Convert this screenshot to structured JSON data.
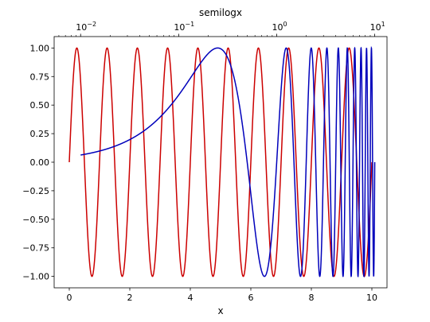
{
  "chart_data": {
    "type": "line",
    "title": "",
    "xlabel": "x",
    "ylabel": "",
    "top_axis_label": "semilogx",
    "bottom_axis": {
      "scale": "linear",
      "xlim": [
        -0.5,
        10.5
      ],
      "ticks": [
        0,
        2,
        4,
        6,
        8,
        10
      ],
      "tick_labels": [
        "0",
        "2",
        "4",
        "6",
        "8",
        "10"
      ]
    },
    "top_axis": {
      "scale": "log",
      "xlim_log10": [
        -2.27,
        1.125
      ],
      "major_ticks": [
        -2,
        -1,
        0,
        1
      ],
      "tick_labels": [
        {
          "base": "10",
          "exp": "−2"
        },
        {
          "base": "10",
          "exp": "−1"
        },
        {
          "base": "10",
          "exp": "0"
        },
        {
          "base": "10",
          "exp": "1"
        }
      ]
    },
    "y_axis": {
      "ylim": [
        -1.1,
        1.1
      ],
      "ticks": [
        -1.0,
        -0.75,
        -0.5,
        -0.25,
        0.0,
        0.25,
        0.5,
        0.75,
        1.0
      ],
      "tick_labels": [
        "−1.00",
        "−0.75",
        "−0.50",
        "−0.25",
        "0.00",
        "0.25",
        "0.50",
        "0.75",
        "1.00"
      ]
    },
    "grid": false,
    "series": [
      {
        "function": "sin(2*pi*x)",
        "axis": "bottom (linear)",
        "x_range": [
          0,
          10
        ],
        "color": "#cc0000"
      },
      {
        "function": "sin(2*pi*x)",
        "axis": "top (log)",
        "x_range": [
          0.01,
          10
        ],
        "color": "#0000bb"
      }
    ]
  }
}
